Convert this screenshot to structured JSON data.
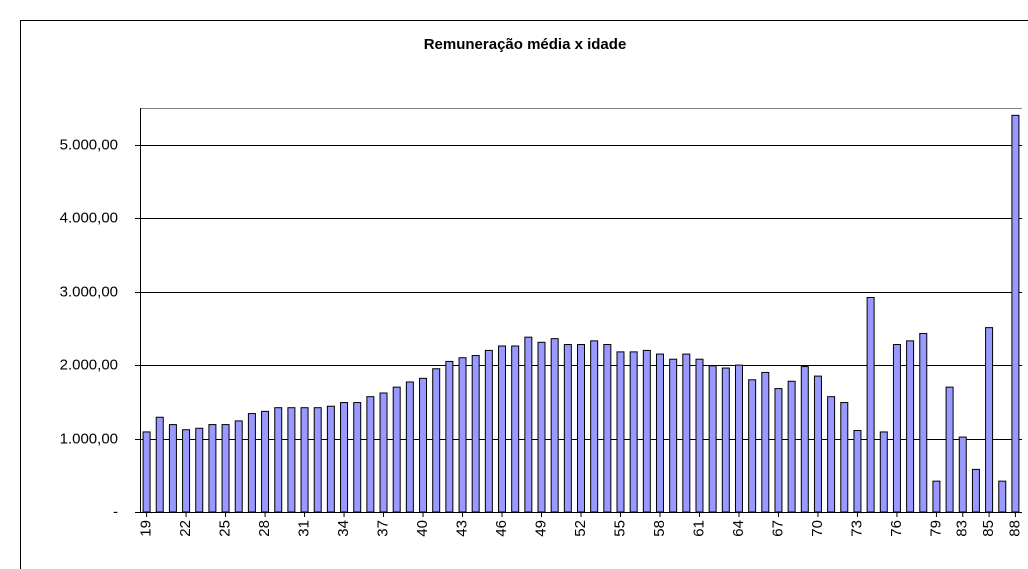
{
  "chart_data": {
    "type": "bar",
    "title": "Remuneração média x idade",
    "categories": [
      "19",
      null,
      null,
      "22",
      null,
      null,
      "25",
      null,
      null,
      "28",
      null,
      null,
      "31",
      null,
      null,
      "34",
      null,
      null,
      "37",
      null,
      null,
      "40",
      null,
      null,
      "43",
      null,
      null,
      "46",
      null,
      null,
      "49",
      null,
      null,
      "52",
      null,
      null,
      "55",
      null,
      null,
      "58",
      null,
      null,
      "61",
      null,
      null,
      "64",
      null,
      null,
      "67",
      null,
      null,
      "70",
      null,
      null,
      "73",
      null,
      null,
      "76",
      null,
      null,
      "79",
      null,
      "83",
      null,
      "85",
      null,
      "88"
    ],
    "values": [
      1090,
      1290,
      1190,
      1120,
      1140,
      1190,
      1190,
      1240,
      1340,
      1370,
      1420,
      1420,
      1420,
      1420,
      1440,
      1490,
      1490,
      1570,
      1620,
      1700,
      1770,
      1820,
      1950,
      2050,
      2100,
      2130,
      2200,
      2260,
      2260,
      2380,
      2310,
      2360,
      2280,
      2280,
      2330,
      2280,
      2180,
      2180,
      2200,
      2150,
      2080,
      2150,
      2080,
      1990,
      1960,
      2000,
      1800,
      1900,
      1680,
      1780,
      1980,
      1850,
      1570,
      1490,
      1110,
      2920,
      1090,
      2280,
      2330,
      2430,
      420,
      1700,
      1020,
      580,
      2510,
      420,
      5400
    ],
    "color": "#9999ff",
    "ylim": [
      0,
      5500
    ],
    "yticks": [
      {
        "value": 0,
        "label": "-"
      },
      {
        "value": 1000,
        "label": "1.000,00"
      },
      {
        "value": 2000,
        "label": "2.000,00"
      },
      {
        "value": 3000,
        "label": "3.000,00"
      },
      {
        "value": 4000,
        "label": "4.000,00"
      },
      {
        "value": 5000,
        "label": "5.000,00"
      }
    ],
    "grid": true
  }
}
